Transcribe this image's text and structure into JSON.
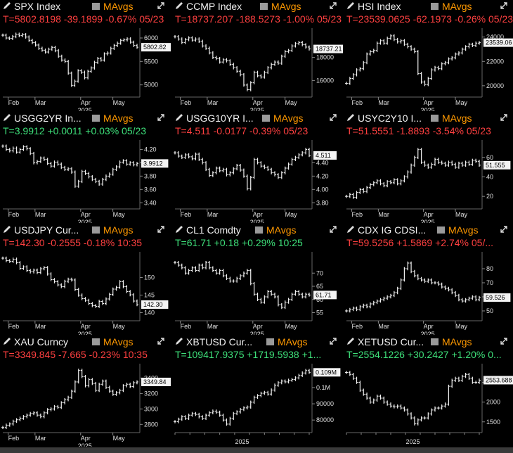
{
  "panels": [
    {
      "name": "SPX Index",
      "m": "MAvgs",
      "quote": "T=5802.8198 -39.1899 -0.67% 05/23",
      "dir": "neg",
      "last": "5802.82",
      "xlabels": [
        "Feb",
        "Mar",
        "Apr",
        "May"
      ],
      "year": "2025",
      "yticks": [
        "6000",
        "5500",
        "5000"
      ],
      "ylim": [
        4800,
        6150
      ],
      "chart_data": {
        "type": "bar",
        "y": [
          6060,
          6000,
          5990,
          6030,
          6080,
          6050,
          6070,
          6020,
          5950,
          5900,
          5850,
          5780,
          5740,
          5700,
          5760,
          5800,
          5730,
          5610,
          5530,
          5500,
          5250,
          4990,
          5080,
          5300,
          5270,
          5150,
          5290,
          5360,
          5480,
          5560,
          5530,
          5660,
          5680,
          5780,
          5840,
          5890,
          5950,
          5960,
          5980,
          5910,
          5840,
          5803
        ]
      }
    },
    {
      "name": "CCMP Index",
      "m": "MAvgs",
      "quote": "T=18737.207 -188.5273 -1.00% 05/23",
      "dir": "neg",
      "last": "18737.21",
      "xlabels": [
        "Feb",
        "Mar",
        "Apr",
        "May"
      ],
      "year": "2025",
      "yticks": [
        "18000",
        "16000"
      ],
      "ylim": [
        14800,
        20300
      ],
      "chart_data": {
        "type": "bar",
        "y": [
          19800,
          19600,
          19300,
          19550,
          19700,
          19500,
          19600,
          19400,
          19000,
          18800,
          18400,
          18000,
          17900,
          17600,
          17800,
          17700,
          17400,
          17100,
          16800,
          16500,
          15600,
          15200,
          15800,
          16700,
          16400,
          16300,
          16700,
          17100,
          17400,
          17600,
          17500,
          18100,
          18500,
          18600,
          19000,
          19200,
          19300,
          19100,
          18900,
          18737
        ]
      }
    },
    {
      "name": "HSI Index",
      "m": "MAvgs",
      "quote": "T=23539.0625 -62.1973 -0.26% 05/23",
      "dir": "neg",
      "last": "23539.06",
      "xlabels": [
        "Feb",
        "Mar",
        "Apr",
        "May"
      ],
      "year": "2025",
      "yticks": [
        "24000",
        "22000",
        "20000"
      ],
      "ylim": [
        19300,
        24500
      ],
      "chart_data": {
        "type": "bar",
        "y": [
          20200,
          20600,
          20900,
          21300,
          21400,
          21900,
          22600,
          22800,
          22900,
          23500,
          23700,
          23500,
          23900,
          24100,
          23800,
          23600,
          23700,
          23400,
          23200,
          23000,
          22800,
          21000,
          20300,
          20100,
          20600,
          21300,
          21500,
          21400,
          21800,
          21900,
          22200,
          22300,
          22600,
          22700,
          23000,
          23200,
          23400,
          23300,
          23500,
          23539
        ]
      }
    },
    {
      "name": "USGG2YR In...",
      "m": "MAvgs",
      "quote": "T=3.9912 +0.0011 +0.03% 05/23",
      "dir": "pos",
      "last": "3.9912",
      "xlabels": [
        "Feb",
        "Mar",
        "Apr",
        "May"
      ],
      "year": "2025",
      "yticks": [
        "4.20",
        "4.00",
        "3.80",
        "3.60",
        "3.40"
      ],
      "ylim": [
        3.35,
        4.3
      ],
      "chart_data": {
        "type": "bar",
        "y": [
          4.25,
          4.2,
          4.18,
          4.22,
          4.16,
          4.2,
          4.24,
          4.21,
          4.14,
          4.0,
          4.02,
          4.07,
          4.05,
          3.99,
          3.95,
          4.01,
          3.98,
          3.93,
          3.9,
          3.91,
          3.86,
          3.65,
          3.72,
          3.87,
          3.84,
          3.79,
          3.75,
          3.72,
          3.68,
          3.75,
          3.8,
          3.83,
          3.9,
          3.94,
          4.01,
          4.03,
          3.98,
          4.0,
          3.97,
          3.99
        ]
      }
    },
    {
      "name": "USGG10YR I...",
      "m": "MAvgs",
      "quote": "T=4.511 -0.0177 -0.39% 05/23",
      "dir": "neg",
      "last": "4.511",
      "xlabels": [
        "Feb",
        "Mar",
        "Apr",
        "May"
      ],
      "year": "2025",
      "yticks": [
        "4.40",
        "4.20",
        "4.00",
        "3.80"
      ],
      "ylim": [
        3.75,
        4.7
      ],
      "chart_data": {
        "type": "bar",
        "y": [
          4.55,
          4.5,
          4.48,
          4.52,
          4.49,
          4.46,
          4.53,
          4.45,
          4.4,
          4.3,
          4.21,
          4.25,
          4.32,
          4.28,
          4.3,
          4.22,
          4.25,
          4.31,
          4.36,
          4.29,
          4.2,
          4.01,
          4.18,
          4.45,
          4.4,
          4.35,
          4.33,
          4.3,
          4.25,
          4.22,
          4.18,
          4.25,
          4.32,
          4.38,
          4.45,
          4.48,
          4.52,
          4.55,
          4.6,
          4.51
        ]
      }
    },
    {
      "name": "USYC2Y10 I...",
      "m": "MAvgs",
      "quote": "T=51.5551 -1.8893 -3.54% 05/23",
      "dir": "neg",
      "last": "51.555",
      "xlabels": [
        "Feb",
        "Mar",
        "Apr",
        "May"
      ],
      "year": "2025",
      "yticks": [
        "60",
        "40",
        "20"
      ],
      "ylim": [
        10,
        75
      ],
      "chart_data": {
        "type": "bar",
        "y": [
          20,
          22,
          19,
          24,
          27,
          25,
          29,
          32,
          34,
          36,
          33,
          31,
          35,
          34,
          37,
          33,
          36,
          40,
          45,
          52,
          60,
          68,
          55,
          52,
          50,
          53,
          58,
          55,
          54,
          52,
          55,
          53,
          50,
          54,
          52,
          55,
          53,
          57,
          56,
          52
        ]
      }
    },
    {
      "name": "USDJPY Cur...",
      "m": "MAvgs",
      "quote": "T=142.30 -0.2555 -0.18% 10:35",
      "dir": "neg",
      "last": "142.30",
      "xlabels": [
        "Feb",
        "Mar",
        "Apr",
        "May"
      ],
      "year": "2025",
      "yticks": [
        "150",
        "145",
        "140"
      ],
      "ylim": [
        138.5,
        156.5
      ],
      "chart_data": {
        "type": "bar",
        "y": [
          155.5,
          154.8,
          154.6,
          155.2,
          154.2,
          152.6,
          153.0,
          152.0,
          151.6,
          152.1,
          151.4,
          152.5,
          152.8,
          151.0,
          149.4,
          148.8,
          147.9,
          147.4,
          148.9,
          149.5,
          149.3,
          146.6,
          145.0,
          144.0,
          143.5,
          142.6,
          142.0,
          141.8,
          143.2,
          142.6,
          143.9,
          145.2,
          146.7,
          147.2,
          148.8,
          147.4,
          146.0,
          145.1,
          143.3,
          142.3
        ]
      }
    },
    {
      "name": "CL1 Comdty",
      "m": "MAvgs",
      "quote": "T=61.71 +0.18 +0.29% 10:25",
      "dir": "pos",
      "last": "61.71",
      "xlabels": [
        "Feb",
        "Mar",
        "Apr",
        "May"
      ],
      "year": "2025",
      "yticks": [
        "70",
        "65",
        "60",
        "55"
      ],
      "ylim": [
        53,
        77
      ],
      "chart_data": {
        "type": "bar",
        "y": [
          74,
          73,
          72,
          70,
          71,
          72,
          71,
          73,
          72,
          74,
          72,
          71,
          70,
          71,
          69,
          68,
          67,
          67,
          68,
          69,
          70,
          71,
          66,
          62,
          60,
          59,
          61,
          63,
          62,
          61,
          58,
          57,
          59,
          60,
          62,
          63,
          62,
          61,
          62,
          61.7
        ]
      }
    },
    {
      "name": "CDX IG CDSI...",
      "m": "MAvgs",
      "quote": "T=59.5256 +1.5869 +2.74% 05/...",
      "dir": "neg",
      "last": "59.526",
      "xlabels": [
        "Feb",
        "Mar",
        "Apr",
        "May"
      ],
      "year": "2025",
      "yticks": [
        "80",
        "70",
        "60",
        "50"
      ],
      "ylim": [
        45,
        90
      ],
      "chart_data": {
        "type": "bar",
        "y": [
          50,
          51,
          52,
          51,
          53,
          54,
          53,
          55,
          56,
          57,
          58,
          59,
          60,
          61,
          63,
          66,
          72,
          80,
          84,
          78,
          75,
          73,
          72,
          71,
          72,
          70,
          70,
          69,
          67,
          66,
          65,
          63,
          61,
          58,
          57,
          58,
          59,
          60,
          58,
          59.5
        ]
      }
    },
    {
      "name": "XAU Curncy",
      "m": "MAvgs",
      "quote": "T=3349.845 -7.665 -0.23% 10:35",
      "dir": "neg",
      "last": "3349.84",
      "xlabels": [
        "Feb",
        "Mar",
        "Apr",
        "May"
      ],
      "year": "2025",
      "yticks": [
        "3400",
        "3200",
        "3000",
        "2800"
      ],
      "ylim": [
        2730,
        3550
      ],
      "chart_data": {
        "type": "bar",
        "y": [
          2760,
          2790,
          2805,
          2840,
          2860,
          2880,
          2900,
          2920,
          2940,
          2950,
          2920,
          2900,
          2950,
          2990,
          3000,
          3030,
          3020,
          3080,
          3120,
          3150,
          3230,
          3350,
          3500,
          3420,
          3300,
          3380,
          3330,
          3240,
          3320,
          3360,
          3280,
          3230,
          3190,
          3210,
          3240,
          3300,
          3320,
          3290,
          3340,
          3350
        ]
      }
    },
    {
      "name": "XBTUSD Cur...",
      "m": "MAvgs",
      "quote": "T=109417.9375 +1719.5938 +1...",
      "dir": "pos",
      "last": "0.109M",
      "xlabels": [],
      "year": "2025",
      "yticks": [
        "0.1M",
        "90000",
        "80000"
      ],
      "ylim": [
        74000,
        113000
      ],
      "chart_data": {
        "type": "bar",
        "y": [
          79000,
          80500,
          82000,
          81000,
          83000,
          84000,
          83500,
          82000,
          81000,
          83000,
          84500,
          85500,
          84800,
          83000,
          80000,
          77500,
          81000,
          84000,
          85000,
          86500,
          87500,
          88000,
          91000,
          94000,
          95000,
          96500,
          97000,
          96000,
          98500,
          101500,
          103000,
          104000,
          103500,
          104500,
          105000,
          106000,
          107500,
          109000,
          110500,
          109400
        ]
      }
    },
    {
      "name": "XETUSD Cur...",
      "m": "MAvgs",
      "quote": "T=2554.1226 +30.2427 +1.20% 0...",
      "dir": "pos",
      "last": "2553.688",
      "xlabels": [],
      "year": "2025",
      "yticks": [
        "2500",
        "2000",
        "1500"
      ],
      "ylim": [
        1300,
        2900
      ],
      "chart_data": {
        "type": "bar",
        "y": [
          2750,
          2700,
          2600,
          2500,
          2300,
          2200,
          2100,
          2000,
          2050,
          2150,
          2100,
          2000,
          1950,
          1900,
          1880,
          1900,
          1850,
          1800,
          1700,
          1600,
          1450,
          1550,
          1600,
          1600,
          1700,
          1800,
          1850,
          1850,
          1900,
          1950,
          2400,
          2550,
          2600,
          2550,
          2650,
          2700,
          2600,
          2500,
          2500,
          2554
        ]
      }
    }
  ]
}
